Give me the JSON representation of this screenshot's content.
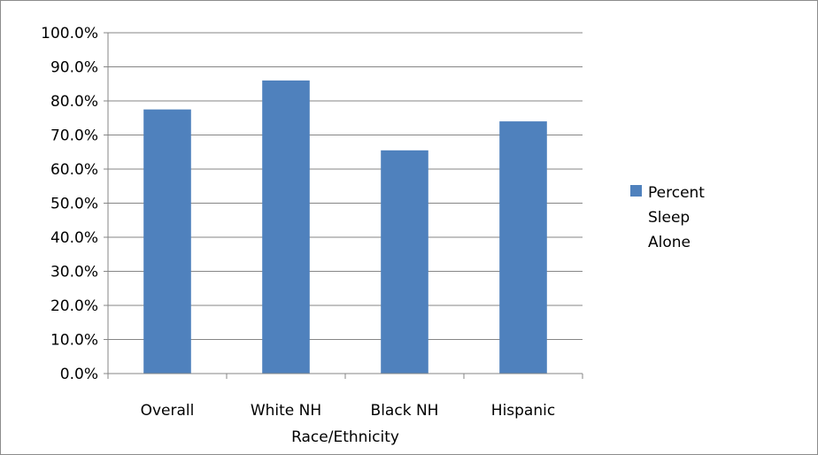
{
  "chart_data": {
    "type": "bar",
    "categories": [
      "Overall",
      "White NH",
      "Black NH",
      "Hispanic"
    ],
    "series": [
      {
        "name": "Percent Sleep Alone",
        "values": [
          77.5,
          86.0,
          65.5,
          74.0
        ],
        "color": "#4f81bd"
      }
    ],
    "xlabel": "Race/Ethnicity",
    "ylabel": "",
    "ylim": [
      0,
      100
    ],
    "ytick_step": 10,
    "ytick_labels": [
      "0.0%",
      "10.0%",
      "20.0%",
      "30.0%",
      "40.0%",
      "50.0%",
      "60.0%",
      "70.0%",
      "80.0%",
      "90.0%",
      "100.0%"
    ],
    "grid": true,
    "legend": {
      "placement": "right",
      "lines": [
        "Percent",
        "Sleep",
        "Alone"
      ]
    }
  }
}
